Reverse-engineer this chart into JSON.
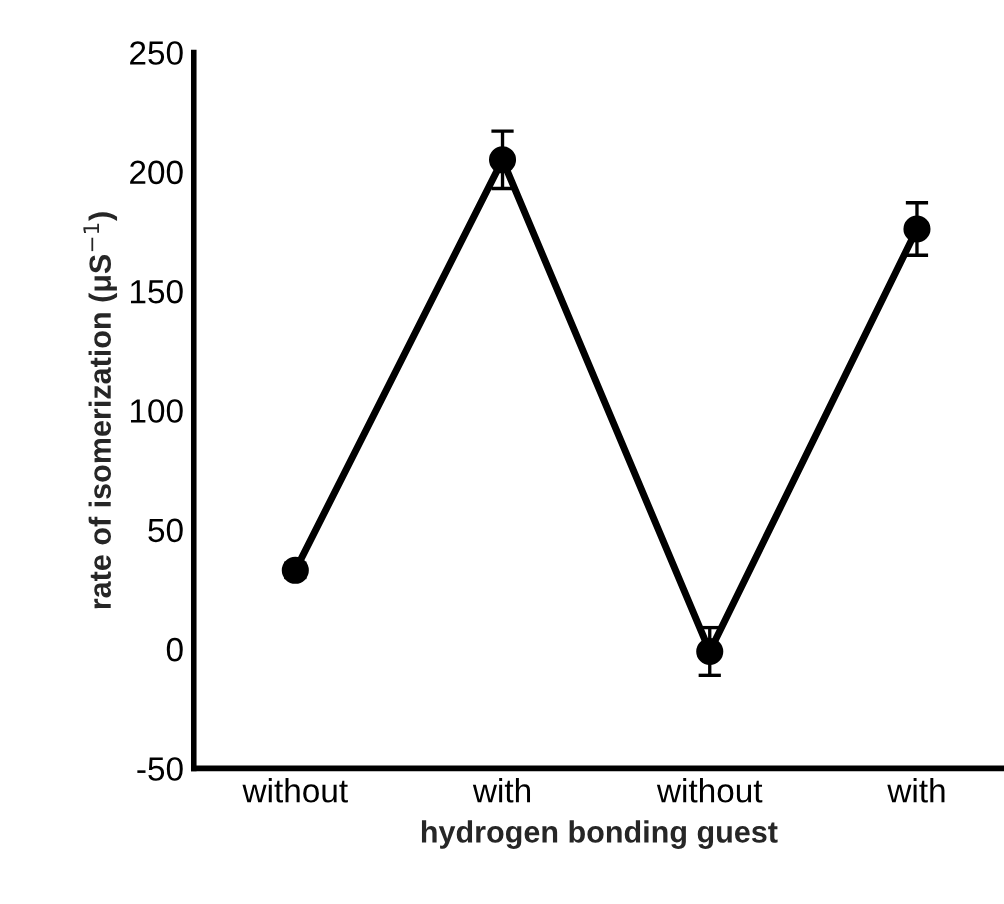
{
  "chart_data": {
    "type": "line",
    "xlabel": "hydrogen bonding guest",
    "ylabel": "rate of isomerization (μS$^{−1}$)",
    "categories": [
      "without",
      "with",
      "without",
      "with"
    ],
    "series": [
      {
        "color": "#000000",
        "values": [
          33,
          205,
          -1,
          176
        ],
        "errors": [
          3,
          12,
          10,
          11
        ]
      }
    ],
    "ylim": [
      -50,
      250
    ],
    "yticks": [
      {
        "value": -50,
        "label": "-50"
      },
      0,
      50,
      100,
      150,
      200,
      250
    ],
    "marker": "circle",
    "line_style": "solid",
    "grid": false,
    "legend": false
  }
}
